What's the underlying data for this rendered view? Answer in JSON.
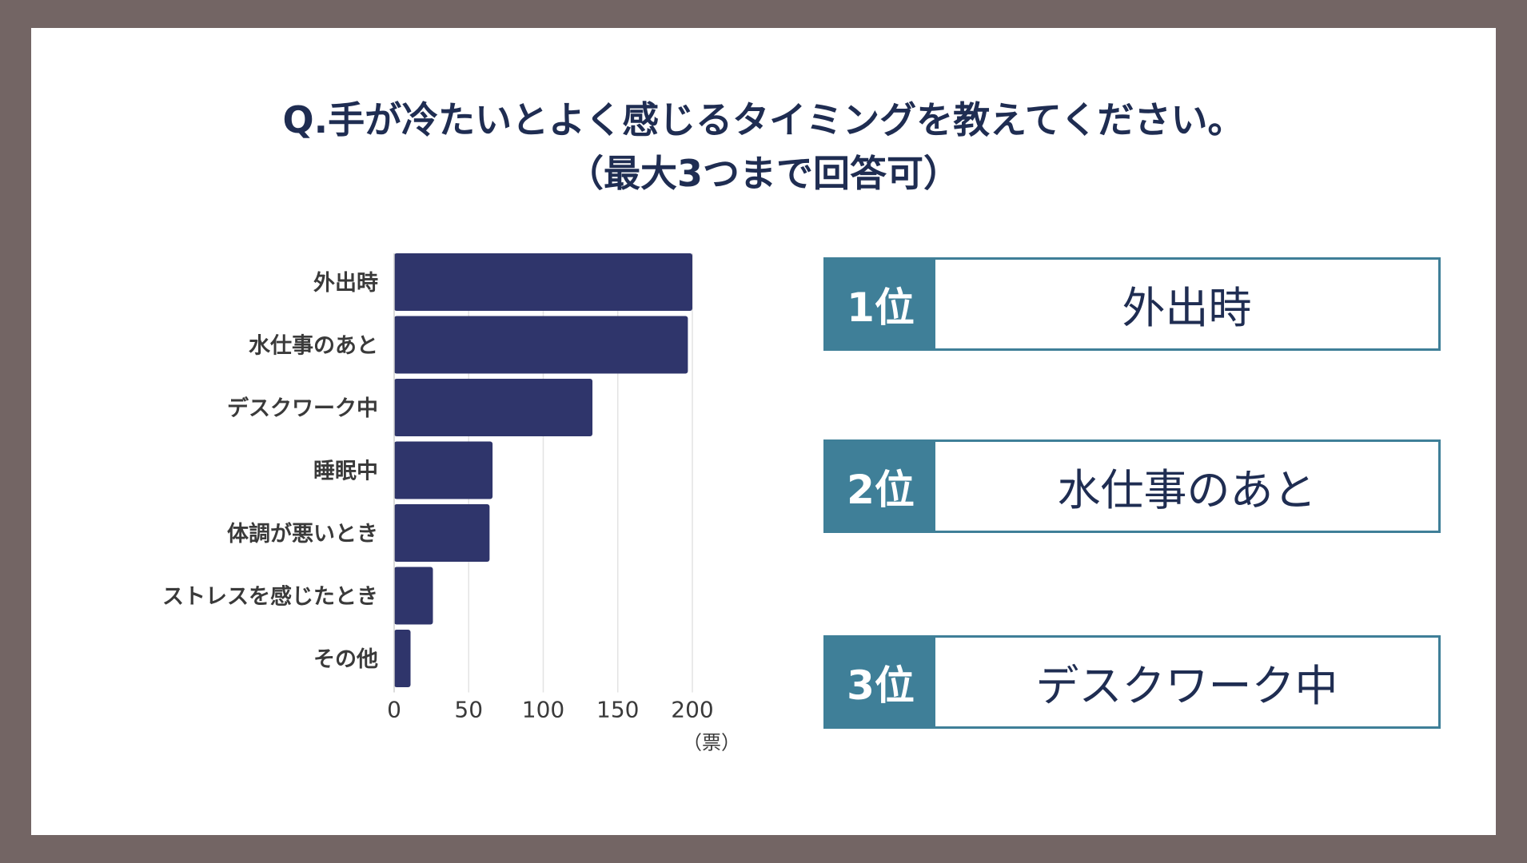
{
  "title": {
    "line1": "Q.手が冷たいとよく感じるタイミングを教えてください。",
    "line2": "（最大3つまで回答可）"
  },
  "colors": {
    "bar": "#2f356b",
    "accent": "#3f7f98",
    "title": "#1f2d52",
    "frame": "#736564"
  },
  "chart_data": {
    "type": "bar",
    "orientation": "horizontal",
    "categories": [
      "外出時",
      "水仕事のあと",
      "デスクワーク中",
      "睡眠中",
      "体調が悪いとき",
      "ストレスを感じたとき",
      "その他"
    ],
    "values": [
      200,
      197,
      133,
      66,
      64,
      26,
      11
    ],
    "xlim": [
      0,
      200
    ],
    "xticks": [
      0,
      50,
      100,
      150,
      200
    ],
    "xlabel": "（票）",
    "grid": true
  },
  "ranking": [
    {
      "rank": "1位",
      "item": "外出時"
    },
    {
      "rank": "2位",
      "item": "水仕事のあと"
    },
    {
      "rank": "3位",
      "item": "デスクワーク中"
    }
  ]
}
